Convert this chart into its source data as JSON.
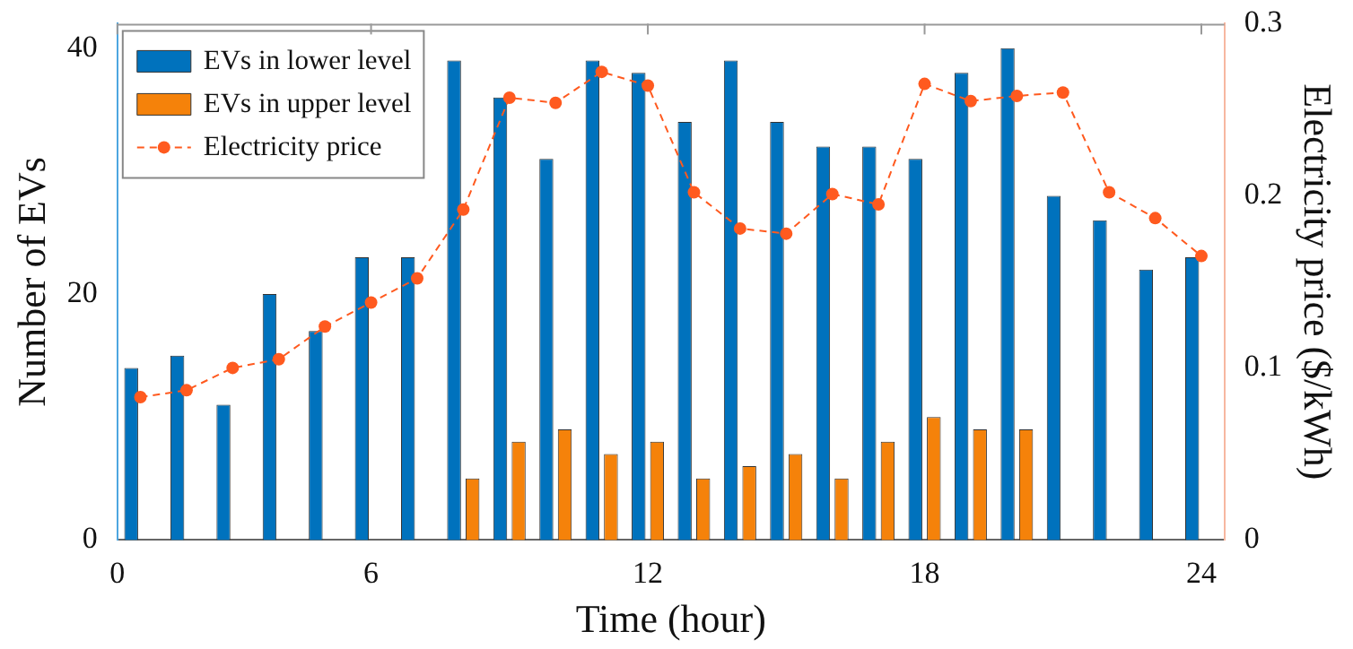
{
  "chart_data": {
    "type": "bar",
    "xlabel": "Time (hour)",
    "ylabel": "Number of EVs",
    "y2label": "Electricity price ($/kWh)",
    "x": [
      1,
      2,
      3,
      4,
      5,
      6,
      7,
      8,
      9,
      10,
      11,
      12,
      13,
      14,
      15,
      16,
      17,
      18,
      19,
      20,
      21,
      22,
      23,
      24
    ],
    "xlim": [
      0.5,
      24.5
    ],
    "xticks": [
      {
        "value": 0.5,
        "label": "0"
      },
      6,
      12,
      18,
      24
    ],
    "ylim": [
      0,
      42
    ],
    "yticks": [
      0,
      20,
      40
    ],
    "y2lim": [
      0,
      0.3
    ],
    "y2ticks": [
      0,
      0.1,
      0.2,
      0.3
    ],
    "series": [
      {
        "name": "EVs in lower level",
        "color": "#0072bd",
        "values": [
          14,
          15,
          11,
          20,
          17,
          23,
          23,
          39,
          36,
          31,
          39,
          38,
          34,
          39,
          34,
          32,
          32,
          31,
          38,
          40,
          28,
          26,
          22,
          23
        ]
      },
      {
        "name": "EVs in upper level",
        "color": "#f5820a",
        "values": [
          0,
          0,
          0,
          0,
          0,
          0,
          0,
          5,
          8,
          9,
          7,
          8,
          5,
          6,
          7,
          5,
          8,
          10,
          9,
          9,
          0,
          0,
          0,
          0
        ]
      },
      {
        "name": "Electricity price",
        "type": "line",
        "axis": "y2",
        "color": "#ff5a1f",
        "values": [
          0.083,
          0.087,
          0.1,
          0.105,
          0.124,
          0.138,
          0.152,
          0.192,
          0.257,
          0.254,
          0.272,
          0.264,
          0.202,
          0.181,
          0.178,
          0.201,
          0.195,
          0.265,
          0.255,
          0.258,
          0.26,
          0.202,
          0.187,
          0.165
        ]
      }
    ],
    "marker": "circle",
    "line_style": "dashed",
    "legend": "top left",
    "grid": false
  }
}
